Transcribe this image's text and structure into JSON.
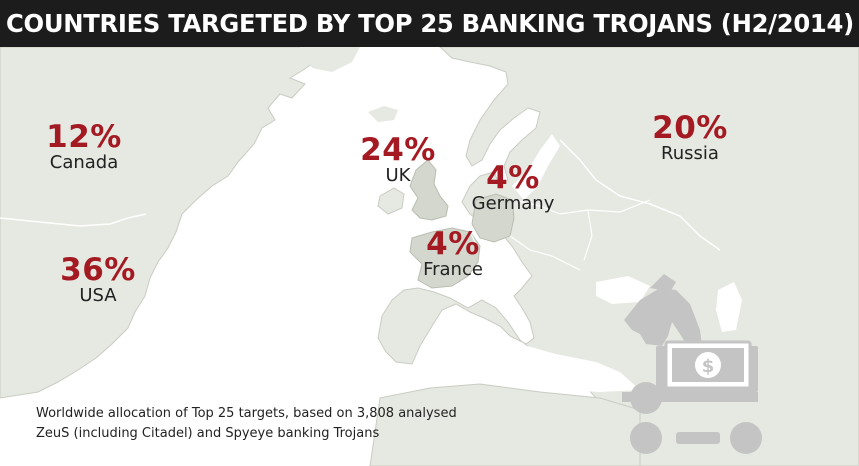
{
  "title": "COUNTRIES TARGETED BY TOP 25 BANKING TROJANS (H2/2014)",
  "colors": {
    "title_bg": "#1c1c1c",
    "land": "#e6e8e2",
    "land_highlight": "#d4d7cd",
    "percent": "#a31a22",
    "trojan_icon": "#c4c4c4"
  },
  "countries": [
    {
      "name": "Canada",
      "percent": "12%"
    },
    {
      "name": "USA",
      "percent": "36%"
    },
    {
      "name": "UK",
      "percent": "24%"
    },
    {
      "name": "Germany",
      "percent": "4%"
    },
    {
      "name": "France",
      "percent": "4%"
    },
    {
      "name": "Russia",
      "percent": "20%"
    }
  ],
  "footnote": {
    "line1": "Worldwide allocation of Top 25 targets, based on 3,808 analysed",
    "line2": "ZeuS (including Citadel) and Spyeye banking Trojans"
  },
  "icons": [
    "trojan-horse-icon",
    "dollar-bill-icon"
  ]
}
